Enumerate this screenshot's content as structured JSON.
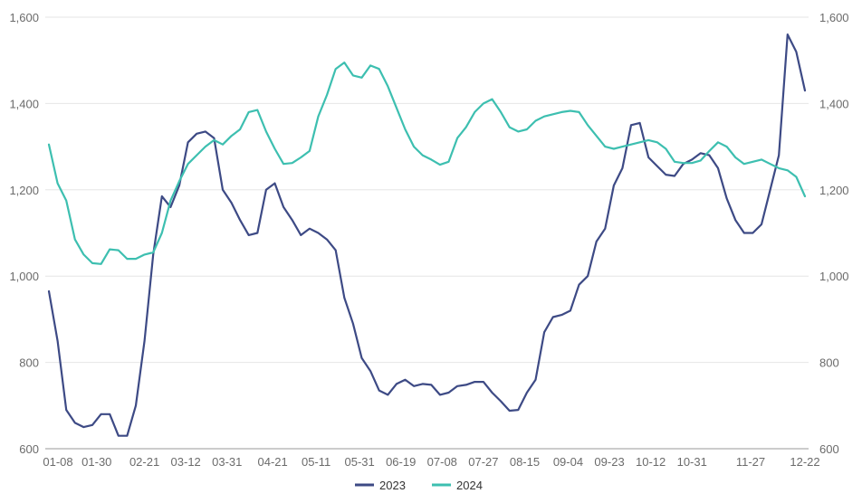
{
  "chart_data": {
    "type": "line",
    "title": "",
    "xlabel": "",
    "ylabel": "",
    "ylim": [
      600,
      1600
    ],
    "y_ticks": [
      600,
      800,
      1000,
      1200,
      1400,
      1600
    ],
    "y_tick_labels": [
      "600",
      "800",
      "1,000",
      "1,200",
      "1,400",
      "1,600"
    ],
    "y2_ticks": [
      600,
      800,
      1000,
      1200,
      1400,
      1600
    ],
    "y2_tick_labels": [
      "600",
      "800",
      "1,000",
      "1,200",
      "1,400",
      "1,600"
    ],
    "x_tick_labels": [
      "01-08",
      "01-30",
      "02-21",
      "03-12",
      "03-31",
      "04-21",
      "05-11",
      "05-31",
      "06-19",
      "07-08",
      "07-27",
      "08-15",
      "09-04",
      "09-23",
      "10-12",
      "10-31",
      "11-27",
      "12-22"
    ],
    "grid": "horizontal",
    "legend_position": "bottom-center",
    "x_dates": [
      "01-08",
      "01-12",
      "01-16",
      "01-20",
      "01-24",
      "01-28",
      "02-01",
      "02-05",
      "02-09",
      "02-13",
      "02-17",
      "02-21",
      "02-25",
      "03-01",
      "03-05",
      "03-09",
      "03-13",
      "03-17",
      "03-21",
      "03-25",
      "03-29",
      "04-02",
      "04-06",
      "04-10",
      "04-14",
      "04-18",
      "04-22",
      "04-26",
      "04-30",
      "05-04",
      "05-08",
      "05-12",
      "05-16",
      "05-20",
      "05-24",
      "05-28",
      "06-01",
      "06-05",
      "06-09",
      "06-13",
      "06-17",
      "06-21",
      "06-25",
      "06-29",
      "07-03",
      "07-07",
      "07-11",
      "07-15",
      "07-19",
      "07-23",
      "07-27",
      "07-31",
      "08-04",
      "08-08",
      "08-12",
      "08-16",
      "08-20",
      "08-24",
      "08-28",
      "09-01",
      "09-05",
      "09-09",
      "09-13",
      "09-17",
      "09-21",
      "09-25",
      "09-29",
      "10-03",
      "10-07",
      "10-11",
      "10-15",
      "10-19",
      "10-23",
      "10-27",
      "10-31",
      "11-04",
      "11-08",
      "11-12",
      "11-16",
      "11-20",
      "11-24",
      "11-28",
      "12-02",
      "12-06",
      "12-10",
      "12-14",
      "12-18",
      "12-22"
    ],
    "series": [
      {
        "name": "2023",
        "color": "#3d4a85",
        "values": [
          965,
          850,
          690,
          660,
          650,
          655,
          680,
          680,
          630,
          630,
          700,
          850,
          1050,
          1185,
          1160,
          1210,
          1310,
          1330,
          1335,
          1320,
          1200,
          1170,
          1130,
          1095,
          1100,
          1200,
          1215,
          1160,
          1130,
          1095,
          1110,
          1100,
          1085,
          1060,
          950,
          890,
          810,
          780,
          735,
          725,
          750,
          760,
          745,
          750,
          748,
          725,
          730,
          745,
          748,
          755,
          755,
          730,
          710,
          688,
          690,
          730,
          760,
          870,
          905,
          910,
          920,
          980,
          1000,
          1080,
          1110,
          1210,
          1250,
          1350,
          1355,
          1275,
          1255,
          1235,
          1232,
          1260,
          1270,
          1285,
          1280,
          1250,
          1180,
          1130,
          1100,
          1100,
          1120,
          1200,
          1280,
          1560,
          1520,
          1430
        ]
      },
      {
        "name": "2024",
        "color": "#3dbfb0",
        "values": [
          1305,
          1215,
          1175,
          1085,
          1050,
          1030,
          1028,
          1062,
          1060,
          1040,
          1040,
          1050,
          1055,
          1100,
          1175,
          1220,
          1260,
          1280,
          1300,
          1315,
          1305,
          1325,
          1340,
          1380,
          1385,
          1335,
          1295,
          1260,
          1262,
          1275,
          1290,
          1370,
          1420,
          1480,
          1495,
          1465,
          1460,
          1488,
          1480,
          1440,
          1390,
          1340,
          1300,
          1280,
          1270,
          1258,
          1265,
          1320,
          1345,
          1380,
          1400,
          1410,
          1380,
          1345,
          1335,
          1340,
          1360,
          1370,
          1375,
          1380,
          1383,
          1380,
          1350,
          1325,
          1300,
          1295,
          1300,
          1305,
          1310,
          1315,
          1310,
          1295,
          1265,
          1262,
          1262,
          1268,
          1290,
          1310,
          1300,
          1275,
          1260,
          1265,
          1270,
          1260,
          1250,
          1245,
          1230,
          1185
        ]
      }
    ]
  }
}
